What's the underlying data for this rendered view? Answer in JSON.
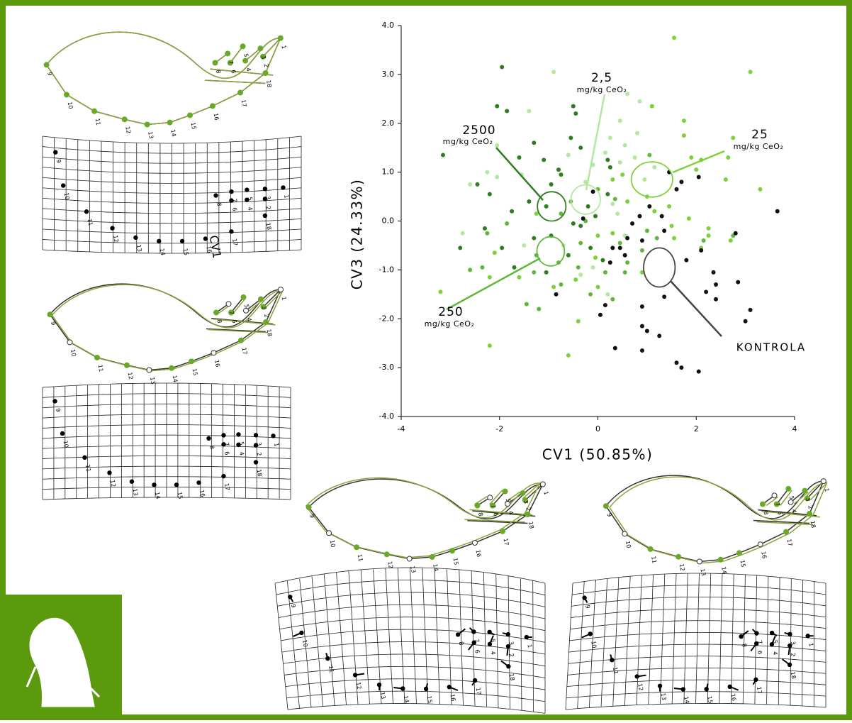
{
  "chart_data": {
    "type": "scatter",
    "x_label": "CV1 (50.85%)",
    "y_label": "CV3 (24.33%)",
    "xlim": [
      -4,
      4
    ],
    "ylim": [
      -4,
      4
    ],
    "xticks": [
      -4,
      -2,
      0,
      2,
      4
    ],
    "yticks": [
      {
        "value": 4,
        "label": "4.0"
      },
      {
        "value": 3,
        "label": "3.0"
      },
      {
        "value": 2,
        "label": "2.0"
      },
      {
        "value": 1,
        "label": "1.0"
      },
      {
        "value": 0,
        "label": "0.0"
      },
      {
        "value": -1,
        "label": "-1.0"
      },
      {
        "value": -2,
        "label": "-2.0"
      },
      {
        "value": -3,
        "label": "-3.0"
      },
      {
        "value": -4,
        "label": "-4.0"
      }
    ],
    "series": [
      {
        "name": "2500",
        "unit": "mg/kg CeO₂",
        "color": "#2e7d1e",
        "x": [
          -1.95,
          -2.05,
          -1.85,
          -3.15,
          -1.6,
          -1.1,
          -1.3,
          -0.8,
          -0.55,
          -0.35,
          -0.5,
          -0.45,
          -0.75,
          -0.95,
          -1.05,
          -1.4,
          -1.75,
          -2.2,
          -2.45,
          -2.8,
          -2.3,
          -1.95,
          -1.7,
          -1.3,
          -0.95,
          -0.35,
          -0.05,
          0.2,
          0.25,
          0.2,
          -0.2,
          -0.5,
          -1.05,
          0.1,
          -0.6,
          -0.15
        ],
        "y": [
          3.15,
          2.35,
          2.25,
          1.35,
          1.3,
          1.25,
          1.6,
          1.05,
          1.7,
          1.5,
          2.35,
          2.2,
          0.95,
          0.75,
          0.3,
          0.4,
          0.2,
          0.55,
          0.75,
          -0.55,
          -0.15,
          -0.55,
          -0.95,
          -0.35,
          -0.3,
          -0.1,
          0.1,
          0.55,
          1.1,
          1.25,
          0.3,
          -0.05,
          -1.05,
          -0.8,
          -0.7,
          -0.55
        ],
        "ellipse": {
          "center": [
            -0.94,
            0.3
          ],
          "radius": [
            0.29,
            0.3
          ]
        }
      },
      {
        "name": "2,5",
        "unit": "mg/kg CeO₂",
        "color": "#b4e8a0",
        "x": [
          -1.4,
          -0.9,
          0.6,
          0.85,
          0.45,
          0.8,
          0.25,
          0.15,
          0.55,
          0.45,
          0.75,
          -0.1,
          -0.25,
          -0.6,
          -2.05,
          -2.25,
          -2.05,
          -2.6,
          -1.55,
          0.95,
          1.15,
          0.3,
          0.4,
          0.55,
          -0.1,
          -0.35,
          -2.75,
          -1.5,
          0.2,
          -0.7
        ],
        "y": [
          2.25,
          3.05,
          2.6,
          2.45,
          2.05,
          1.8,
          1.7,
          1.4,
          1.55,
          1.2,
          1.3,
          1.15,
          0.8,
          1.35,
          1.55,
          1.0,
          0.9,
          0.75,
          0.95,
          0.85,
          1.1,
          0.35,
          0.15,
          -0.3,
          -0.95,
          -1.1,
          -0.25,
          -0.5,
          -1.5,
          -0.5
        ],
        "ellipse": {
          "center": [
            -0.25,
            0.44
          ],
          "radius": [
            0.3,
            0.3
          ]
        }
      },
      {
        "name": "25",
        "unit": "mg/kg CeO₂",
        "color": "#7dd13b",
        "x": [
          1.55,
          3.1,
          1.1,
          1.75,
          1.75,
          2.1,
          2.65,
          2.75,
          3.3,
          2.0,
          1.9,
          2.6,
          1.45,
          1.15,
          1.85,
          1.5,
          1.0,
          0.6,
          0.5,
          0.3,
          2.25,
          2.1,
          2.25,
          2.7,
          1.55,
          0.9,
          0.0,
          -0.4,
          -0.45,
          -0.05,
          -1.25,
          -2.1,
          -2.2,
          -3.2,
          -2.2,
          -0.6,
          0.3,
          0.0,
          -1.6,
          -0.9
        ],
        "y": [
          3.75,
          3.05,
          2.35,
          2.05,
          1.75,
          1.25,
          1.3,
          1.7,
          0.65,
          1.05,
          1.3,
          0.85,
          0.3,
          0.2,
          0.05,
          -0.1,
          0.5,
          0.4,
          0.95,
          0.85,
          -0.15,
          -0.55,
          -0.3,
          -0.4,
          -0.35,
          -1.05,
          -1.35,
          -2.05,
          -1.2,
          -0.75,
          0.15,
          -0.65,
          -1.15,
          -1.45,
          -2.55,
          -2.75,
          -0.25,
          -0.3,
          -1.15,
          -1.35
        ],
        "ellipse": {
          "center": [
            1.1,
            0.85
          ],
          "radius": [
            0.42,
            0.36
          ]
        }
      },
      {
        "name": "250",
        "unit": "mg/kg CeO₂",
        "color": "#5fb83a",
        "x": [
          -2.25,
          -1.85,
          -2.35,
          -1.3,
          -1.45,
          -1.2,
          -0.15,
          -0.75,
          -0.4,
          0.15,
          0.55,
          0.3,
          0.6,
          0.9,
          1.2,
          -0.35,
          -0.25,
          -0.75,
          -0.55,
          0.0,
          0.35,
          0.45,
          1.0,
          2.15,
          2.75,
          1.7,
          1.05,
          -1.25,
          -0.8,
          -2.6
        ],
        "y": [
          -0.25,
          -0.05,
          -0.95,
          -1.05,
          -1.7,
          -1.8,
          -1.5,
          -1.3,
          -0.95,
          -1.05,
          -1.05,
          -1.6,
          -0.85,
          -0.6,
          -0.35,
          -0.45,
          0.0,
          0.15,
          0.4,
          0.65,
          0.45,
          -0.45,
          -0.2,
          -0.4,
          -0.3,
          0.8,
          1.35,
          -0.7,
          -0.85,
          -1.0
        ],
        "ellipse": {
          "center": [
            -0.96,
            -0.62
          ],
          "radius": [
            0.28,
            0.3
          ]
        }
      },
      {
        "name": "KONTROLA",
        "color": "#111111",
        "x": [
          0.35,
          0.9,
          1.25,
          1.6,
          1.7,
          2.05,
          0.9,
          1.0,
          0.05,
          0.15,
          0.9,
          1.35,
          2.2,
          2.4,
          2.4,
          2.35,
          2.85,
          3.1,
          3.0,
          3.65,
          2.8,
          2.05,
          1.7,
          1.45,
          1.6,
          1.35,
          1.3,
          0.85,
          0.7,
          0.45,
          0.55,
          0.6,
          -0.3,
          0.9,
          0.25,
          -0.85,
          -0.1,
          0.3,
          1.05,
          1.8,
          2.1
        ],
        "y": [
          -2.6,
          -2.65,
          -2.35,
          -2.9,
          -3.0,
          -3.08,
          -2.15,
          -2.25,
          -1.92,
          -1.72,
          -1.75,
          -1.55,
          -1.45,
          -1.6,
          -1.3,
          -1.05,
          -1.25,
          -1.82,
          -2.05,
          0.2,
          -0.25,
          0.9,
          0.8,
          1.0,
          0.65,
          -0.2,
          0.1,
          0.1,
          -0.05,
          -0.55,
          -0.7,
          -0.35,
          0.05,
          -0.4,
          -0.85,
          -1.5,
          0.6,
          -0.55,
          0.3,
          -0.8,
          -0.6
        ],
        "ellipse": {
          "center": [
            1.25,
            -0.95
          ],
          "radius": [
            0.32,
            0.4
          ]
        }
      }
    ]
  },
  "landmark_labels": [
    "1",
    "2",
    "3",
    "4",
    "5",
    "6",
    "7",
    "8",
    "9",
    "10",
    "11",
    "12",
    "13",
    "14",
    "15",
    "16",
    "17",
    "18"
  ],
  "grid_annotation": "CV1"
}
